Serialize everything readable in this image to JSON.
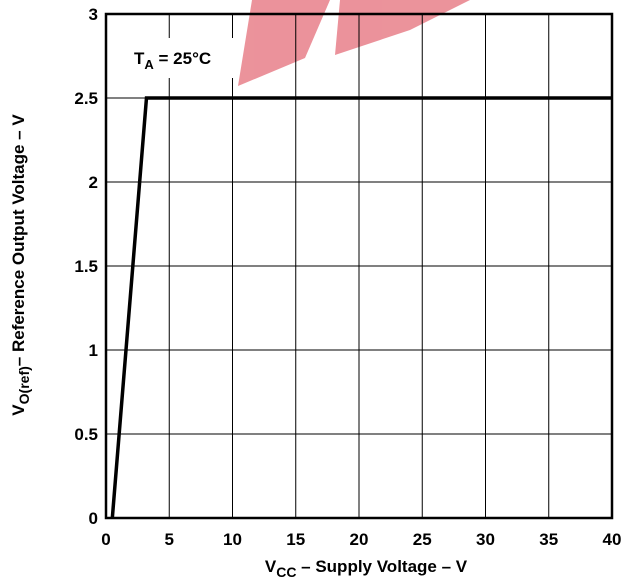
{
  "chart_data": {
    "type": "line",
    "xlabel": {
      "main": "V",
      "sub": "CC",
      "rest": " – Supply Voltage – V"
    },
    "ylabel": {
      "main": "V",
      "sub": "O(ref)",
      "rest": "– Reference Output Voltage – V"
    },
    "annotation": {
      "main": "T",
      "sub": "A",
      "rest": " = 25°C"
    },
    "xlim": [
      0,
      40
    ],
    "ylim": [
      0,
      3
    ],
    "x_ticks": [
      0,
      5,
      10,
      15,
      20,
      25,
      30,
      35,
      40
    ],
    "y_ticks": [
      0,
      0.5,
      1,
      1.5,
      2,
      2.5,
      3
    ],
    "x_tick_labels": [
      "0",
      "5",
      "10",
      "15",
      "20",
      "25",
      "30",
      "35",
      "40"
    ],
    "y_tick_labels": [
      "0",
      "0.5",
      "1",
      "1.5",
      "2",
      "2.5",
      "3"
    ],
    "grid": true,
    "series": [
      {
        "x": [
          0.5,
          3.2,
          40
        ],
        "y": [
          0,
          2.5,
          2.5
        ],
        "color": "#000000"
      }
    ],
    "watermark_color": "#e8808a"
  }
}
